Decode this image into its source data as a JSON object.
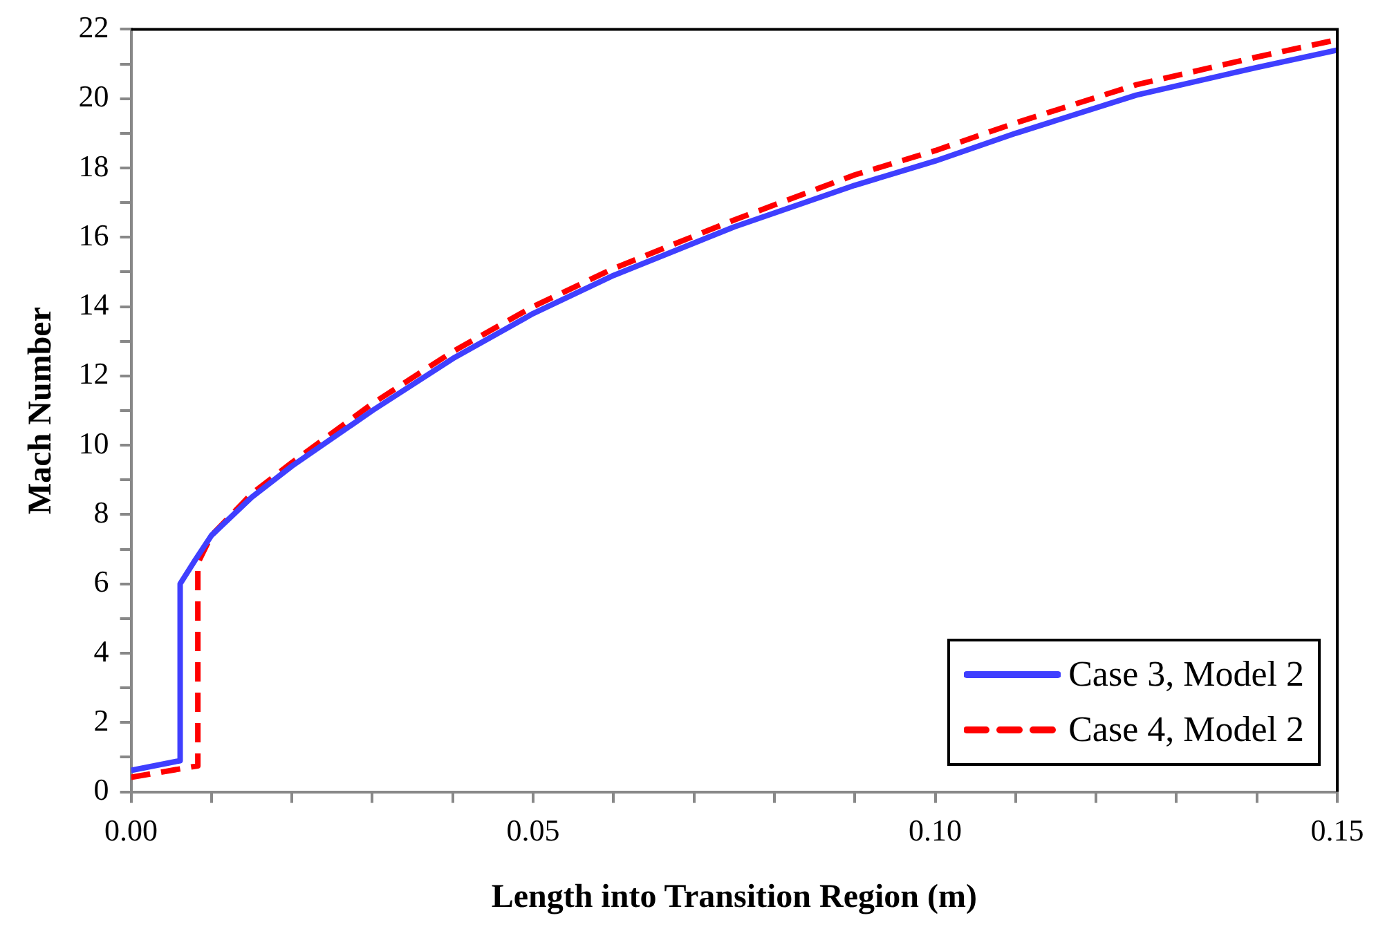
{
  "chart_data": {
    "type": "line",
    "xlabel": "Length into Transition Region (m)",
    "ylabel": "Mach Number",
    "xlim": [
      0,
      0.15
    ],
    "ylim": [
      0,
      22
    ],
    "xticks": [
      {
        "value": 0,
        "label": "0.00"
      },
      {
        "value": 0.01,
        "label": null
      },
      {
        "value": 0.02,
        "label": null
      },
      {
        "value": 0.03,
        "label": null
      },
      {
        "value": 0.04,
        "label": null
      },
      {
        "value": 0.05,
        "label": "0.05"
      },
      {
        "value": 0.06,
        "label": null
      },
      {
        "value": 0.07,
        "label": null
      },
      {
        "value": 0.08,
        "label": null
      },
      {
        "value": 0.09,
        "label": null
      },
      {
        "value": 0.1,
        "label": "0.10"
      },
      {
        "value": 0.11,
        "label": null
      },
      {
        "value": 0.12,
        "label": null
      },
      {
        "value": 0.13,
        "label": null
      },
      {
        "value": 0.14,
        "label": null
      },
      {
        "value": 0.15,
        "label": "0.15"
      }
    ],
    "yticks": [
      0,
      {
        "value": 1,
        "label": null
      },
      2,
      {
        "value": 3,
        "label": null
      },
      4,
      {
        "value": 5,
        "label": null
      },
      6,
      {
        "value": 7,
        "label": null
      },
      8,
      {
        "value": 9,
        "label": null
      },
      10,
      {
        "value": 11,
        "label": null
      },
      12,
      {
        "value": 13,
        "label": null
      },
      14,
      {
        "value": 15,
        "label": null
      },
      16,
      {
        "value": 17,
        "label": null
      },
      18,
      {
        "value": 19,
        "label": null
      },
      20,
      {
        "value": 21,
        "label": null
      },
      22
    ],
    "grid": false,
    "legend": "bottom right",
    "series": [
      {
        "name": "Case 3, Model 2",
        "color": "#3f3fff",
        "line_style": "solid",
        "x": [
          0,
          0.0061,
          0.0061,
          0.008,
          0.01,
          0.015,
          0.02,
          0.03,
          0.04,
          0.05,
          0.06,
          0.075,
          0.09,
          0.1,
          0.11,
          0.125,
          0.14,
          0.15
        ],
        "values": [
          0.62,
          0.9,
          6.0,
          6.7,
          7.4,
          8.5,
          9.4,
          11.0,
          12.5,
          13.8,
          14.9,
          16.3,
          17.5,
          18.2,
          19.0,
          20.1,
          20.9,
          21.4
        ]
      },
      {
        "name": "Case 4, Model 2",
        "color": "#ff0000",
        "line_style": "dashed",
        "x": [
          0,
          0.0083,
          0.0083,
          0.01,
          0.015,
          0.02,
          0.03,
          0.04,
          0.05,
          0.06,
          0.075,
          0.09,
          0.1,
          0.11,
          0.125,
          0.14,
          0.15
        ],
        "values": [
          0.42,
          0.75,
          6.6,
          7.4,
          8.6,
          9.5,
          11.2,
          12.7,
          14.0,
          15.1,
          16.5,
          17.8,
          18.5,
          19.3,
          20.4,
          21.2,
          21.7
        ]
      }
    ]
  }
}
